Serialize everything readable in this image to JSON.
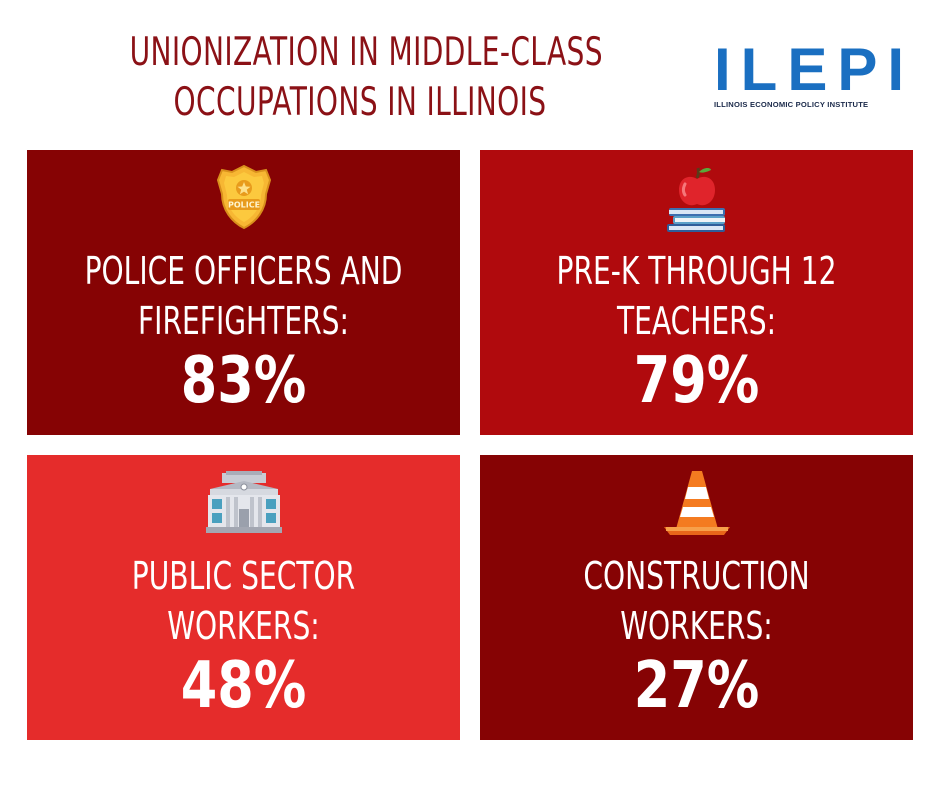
{
  "title": {
    "line1": "UNIONIZATION IN MIDDLE-CLASS",
    "line2": "OCCUPATIONS IN ILLINOIS"
  },
  "logo": {
    "mark": "ILEPI",
    "subtitle": "ILLINOIS ECONOMIC POLICY INSTITUTE",
    "color": "#1a6fc1"
  },
  "tiles": [
    {
      "icon": "police-badge-icon",
      "line1": "POLICE OFFICERS AND",
      "line2": "FIREFIGHTERS:",
      "value": "83%",
      "color": "#860304",
      "badge_text": "POLICE"
    },
    {
      "icon": "apple-on-books-icon",
      "line1": "PRE-K THROUGH 12",
      "line2": "TEACHERS:",
      "value": "79%",
      "color": "#b00a0d"
    },
    {
      "icon": "government-building-icon",
      "line1": "PUBLIC SECTOR",
      "line2": "WORKERS:",
      "value": "48%",
      "color": "#e52c2b"
    },
    {
      "icon": "traffic-cone-icon",
      "line1": "CONSTRUCTION",
      "line2": "WORKERS:",
      "value": "27%",
      "color": "#860304"
    }
  ]
}
